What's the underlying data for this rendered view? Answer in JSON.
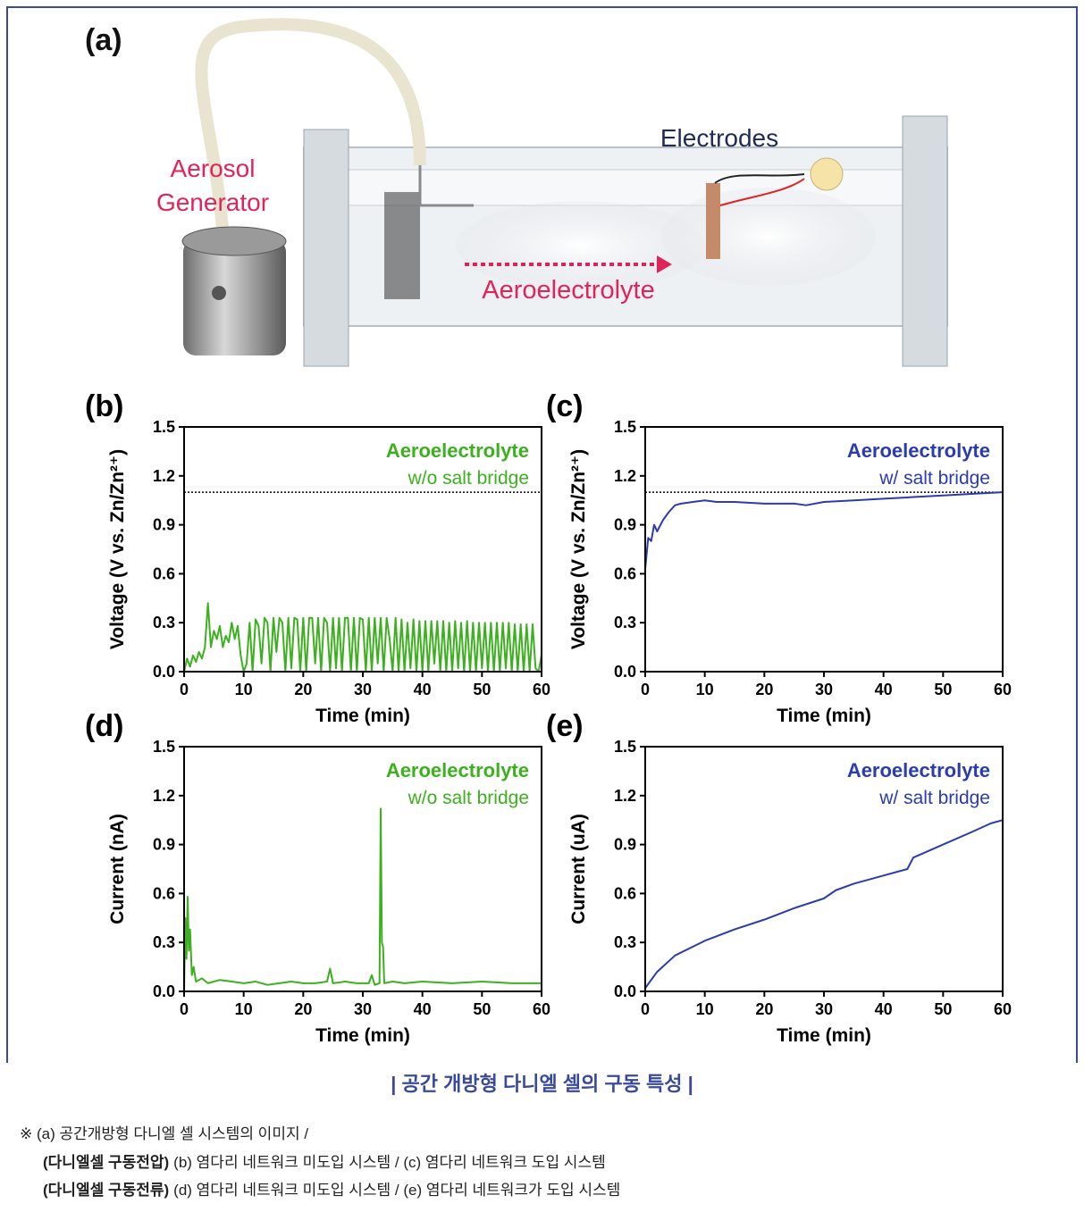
{
  "photo": {
    "panel_label": "(a)",
    "generator_label": [
      "Aerosol",
      "Generator"
    ],
    "electrodes_label": "Electrodes",
    "flow_label": "Aeroelectrolyte"
  },
  "chart_data": [
    {
      "type": "line",
      "label": "(b)",
      "xlabel": "Time (min)",
      "ylabel": "Voltage (V vs. Zn/Zn²⁺)",
      "annotation": [
        "Aeroelectrolyte",
        "w/o salt bridge"
      ],
      "reference_line": 1.1,
      "xlim": [
        0,
        60
      ],
      "xticks": [
        0,
        10,
        20,
        30,
        40,
        50,
        60
      ],
      "ylim": [
        0,
        1.5
      ],
      "yticks": [
        {
          "value": 0,
          "label": "0.0"
        },
        0.3,
        0.6,
        0.9,
        1.2,
        1.5
      ],
      "x": [
        0,
        0.5,
        1,
        1.5,
        2,
        2.5,
        3,
        3.5,
        4,
        4.5,
        5,
        5.5,
        6,
        6.5,
        7,
        7.5,
        8,
        8.5,
        9,
        9.5,
        10,
        10.5,
        11,
        11.5,
        12,
        12.5,
        13,
        13.5,
        14,
        14.5,
        15,
        15.5,
        16,
        16.5,
        17,
        17.5,
        18,
        18.5,
        19,
        19.5,
        20,
        20.5,
        21,
        21.5,
        22,
        22.5,
        23,
        23.5,
        24,
        24.5,
        25,
        25.5,
        26,
        26.5,
        27,
        27.5,
        28,
        28.5,
        29,
        29.5,
        30,
        30.5,
        31,
        31.5,
        32,
        32.5,
        33,
        33.5,
        34,
        34.5,
        35,
        35.5,
        36,
        36.5,
        37,
        37.5,
        38,
        38.5,
        39,
        39.5,
        40,
        40.5,
        41,
        41.5,
        42,
        42.5,
        43,
        43.5,
        44,
        44.5,
        45,
        45.5,
        46,
        46.5,
        47,
        47.5,
        48,
        48.5,
        49,
        49.5,
        50,
        50.5,
        51,
        51.5,
        52,
        52.5,
        53,
        53.5,
        54,
        54.5,
        55,
        55.5,
        56,
        56.5,
        57,
        57.5,
        58,
        58.5,
        59,
        59.5,
        60
      ],
      "series": [
        {
          "color": "#3cb01e",
          "values": [
            0,
            0.08,
            0.03,
            0.1,
            0.06,
            0.12,
            0.08,
            0.15,
            0.42,
            0.15,
            0.25,
            0.2,
            0.28,
            0.15,
            0.22,
            0.18,
            0.3,
            0.2,
            0.28,
            0.1,
            0,
            0.05,
            0.3,
            0,
            0.32,
            0.28,
            0.05,
            0.33,
            0.3,
            0,
            0.33,
            0.12,
            0.33,
            0.3,
            0,
            0.33,
            0.02,
            0.33,
            0.32,
            0,
            0.33,
            0,
            0.33,
            0.33,
            0.05,
            0.33,
            0,
            0.33,
            0.3,
            0,
            0.33,
            0.02,
            0.33,
            0,
            0.33,
            0.33,
            0,
            0.33,
            0,
            0.33,
            0.32,
            0,
            0.33,
            0,
            0.33,
            0.05,
            0.33,
            0,
            0.33,
            0.2,
            0,
            0.33,
            0,
            0.32,
            0,
            0.3,
            0.02,
            0.32,
            0,
            0.31,
            0,
            0.31,
            0,
            0.31,
            0.05,
            0.31,
            0,
            0.31,
            0,
            0.3,
            0,
            0.31,
            0.02,
            0.3,
            0,
            0.31,
            0,
            0.3,
            0,
            0.3,
            0.02,
            0.3,
            0,
            0.3,
            0,
            0.3,
            0,
            0.3,
            0.02,
            0.3,
            0,
            0.29,
            0,
            0.29,
            0,
            0.29,
            0,
            0.29,
            0.02,
            0,
            0.1
          ]
        }
      ]
    },
    {
      "type": "line",
      "label": "(c)",
      "xlabel": "Time (min)",
      "ylabel": "Voltage (V vs. Zn/Zn²⁺)",
      "annotation": [
        "Aeroelectrolyte",
        "w/ salt bridge"
      ],
      "reference_line": 1.1,
      "xlim": [
        0,
        60
      ],
      "xticks": [
        0,
        10,
        20,
        30,
        40,
        50,
        60
      ],
      "ylim": [
        0,
        1.5
      ],
      "yticks": [
        {
          "value": 0,
          "label": "0.0"
        },
        0.3,
        0.6,
        0.9,
        1.2,
        1.5
      ],
      "x": [
        0,
        0.5,
        1,
        1.5,
        2,
        3,
        4,
        5,
        6,
        8,
        10,
        12,
        15,
        20,
        25,
        27,
        30,
        35,
        40,
        45,
        50,
        55,
        60
      ],
      "series": [
        {
          "color": "#2b3bb0",
          "values": [
            0.63,
            0.82,
            0.8,
            0.9,
            0.86,
            0.93,
            0.98,
            1.02,
            1.03,
            1.04,
            1.05,
            1.04,
            1.04,
            1.03,
            1.03,
            1.02,
            1.04,
            1.05,
            1.06,
            1.07,
            1.08,
            1.09,
            1.1
          ]
        }
      ]
    },
    {
      "type": "line",
      "label": "(d)",
      "xlabel": "Time (min)",
      "ylabel": "Current (nA)",
      "annotation": [
        "Aeroelectrolyte",
        "w/o salt bridge"
      ],
      "xlim": [
        0,
        60
      ],
      "xticks": [
        0,
        10,
        20,
        30,
        40,
        50,
        60
      ],
      "ylim": [
        0,
        1.5
      ],
      "yticks": [
        {
          "value": 0,
          "label": "0.0"
        },
        0.3,
        0.6,
        0.9,
        1.2,
        1.5
      ],
      "x": [
        0,
        0.2,
        0.4,
        0.6,
        0.8,
        1,
        1.3,
        1.6,
        2,
        3,
        4,
        5,
        6,
        8,
        10,
        12,
        14,
        16,
        18,
        20,
        22,
        24,
        24.5,
        25,
        27,
        29,
        31,
        31.5,
        32,
        32.8,
        33,
        33.2,
        33.4,
        33.6,
        35,
        37,
        40,
        45,
        50,
        55,
        60
      ],
      "series": [
        {
          "color": "#3cb01e",
          "values": [
            0,
            0.45,
            0.2,
            0.58,
            0.25,
            0.38,
            0.1,
            0.15,
            0.06,
            0.08,
            0.05,
            0.06,
            0.07,
            0.06,
            0.05,
            0.06,
            0.04,
            0.05,
            0.06,
            0.05,
            0.05,
            0.06,
            0.14,
            0.05,
            0.06,
            0.05,
            0.05,
            0.1,
            0.04,
            0.05,
            1.12,
            0.3,
            0.27,
            0.05,
            0.06,
            0.05,
            0.06,
            0.05,
            0.06,
            0.05,
            0.05
          ]
        }
      ]
    },
    {
      "type": "line",
      "label": "(e)",
      "xlabel": "Time (min)",
      "ylabel": "Current (uA)",
      "annotation": [
        "Aeroelectrolyte",
        "w/ salt bridge"
      ],
      "xlim": [
        0,
        60
      ],
      "xticks": [
        0,
        10,
        20,
        30,
        40,
        50,
        60
      ],
      "ylim": [
        0,
        1.5
      ],
      "yticks": [
        {
          "value": 0,
          "label": "0.0"
        },
        0.3,
        0.6,
        0.9,
        1.2,
        1.5
      ],
      "x": [
        0,
        2,
        5,
        10,
        15,
        20,
        25,
        30,
        32,
        35,
        40,
        44,
        45,
        50,
        55,
        58,
        60
      ],
      "series": [
        {
          "color": "#2b3bb0",
          "values": [
            0.02,
            0.12,
            0.22,
            0.31,
            0.38,
            0.44,
            0.51,
            0.57,
            0.62,
            0.66,
            0.71,
            0.75,
            0.82,
            0.9,
            0.98,
            1.03,
            1.05
          ]
        }
      ]
    }
  ],
  "caption": "| 공간 개방형 다니엘 셀의 구동 특성 |",
  "notes": [
    {
      "text": "※ (a) 공간개방형 다니엘 셀 시스템의 이미지 /"
    },
    {
      "bold": "(다니엘셀 구동전압)",
      "text": "(b) 염다리 네트워크 미도입 시스템 / (c) 염다리 네트워크 도입 시스템"
    },
    {
      "bold": "(다니엘셀 구동전류)",
      "text": "(d) 염다리 네트워크 미도입 시스템 / (e) 염다리 네트워크가 도입 시스템"
    }
  ]
}
